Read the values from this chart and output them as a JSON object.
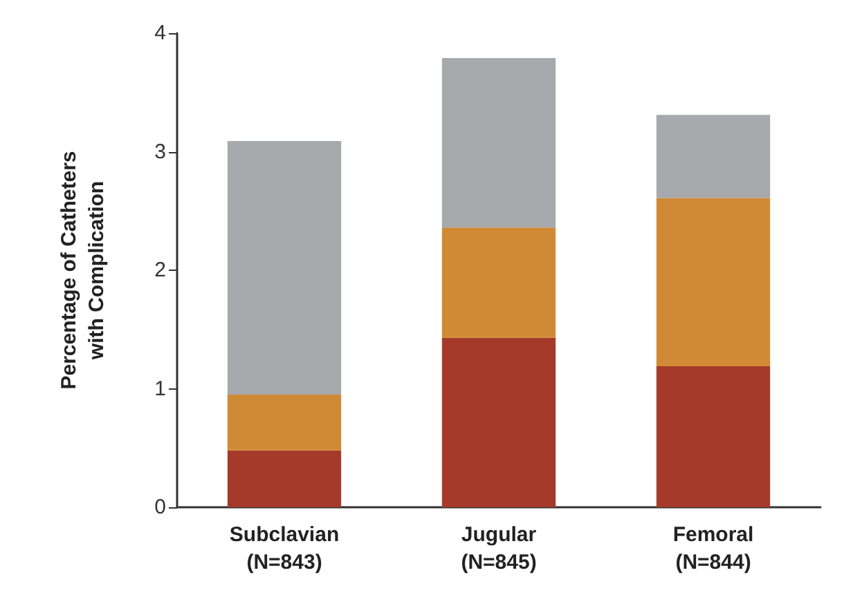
{
  "chart_data": {
    "type": "bar",
    "stacked": true,
    "ylabel": "Percentage of Catheters\nwith Complication",
    "categories": [
      "Subclavian\n(N=843)",
      "Jugular\n(N=845)",
      "Femoral\n(N=844)"
    ],
    "series": [
      {
        "color": "#a63a2a",
        "values": [
          0.48,
          1.43,
          1.19
        ]
      },
      {
        "color": "#d08a35",
        "values": [
          0.47,
          0.93,
          1.42
        ]
      },
      {
        "color": "#a7a9ac",
        "values": [
          2.14,
          1.43,
          0.7
        ]
      }
    ],
    "ylim": [
      0,
      4
    ],
    "yticks": [
      0,
      1,
      2,
      3,
      4
    ]
  }
}
